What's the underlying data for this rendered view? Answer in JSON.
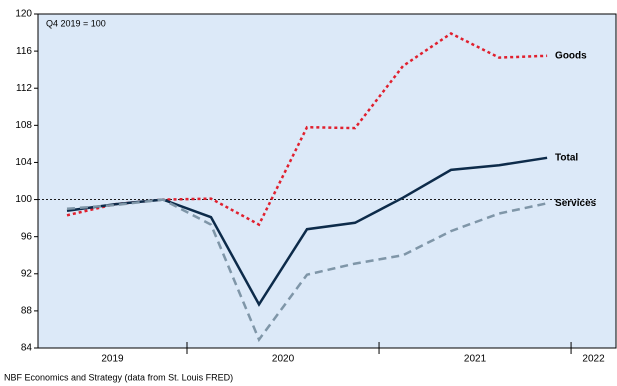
{
  "chart_data": {
    "type": "line",
    "annotation": "Q4 2019 = 100",
    "source": "NBF Economics and Strategy (data from St. Louis FRED)",
    "x": [
      2019.375,
      2019.625,
      2019.875,
      2020.125,
      2020.375,
      2020.625,
      2020.875,
      2021.125,
      2021.375,
      2021.625,
      2021.875
    ],
    "series": [
      {
        "name": "Goods",
        "color": "#e0202e",
        "style": "dotted",
        "values": [
          98.3,
          99.5,
          100,
          100.1,
          97.3,
          107.8,
          107.7,
          114.4,
          117.9,
          115.3,
          115.5
        ]
      },
      {
        "name": "Total",
        "color": "#0d2b4a",
        "style": "solid",
        "values": [
          98.8,
          99.5,
          100,
          98.1,
          88.7,
          96.8,
          97.5,
          100.2,
          103.2,
          103.7,
          104.5
        ]
      },
      {
        "name": "Services",
        "color": "#7f96a8",
        "style": "dashed",
        "values": [
          99.0,
          99.4,
          100,
          97.3,
          84.9,
          91.9,
          93.1,
          94.0,
          96.6,
          98.5,
          99.6
        ]
      }
    ],
    "xlim": [
      2019.224,
      2022.234
    ],
    "xticks": [
      2020,
      2021,
      2022
    ],
    "year_labels": [
      "2019",
      "2020",
      "2021",
      "2022"
    ],
    "ylim": [
      84,
      120
    ],
    "yticks": [
      84,
      88,
      92,
      96,
      100,
      104,
      108,
      112,
      116,
      120
    ],
    "reference_line": 100,
    "background": "#dce9f8"
  }
}
